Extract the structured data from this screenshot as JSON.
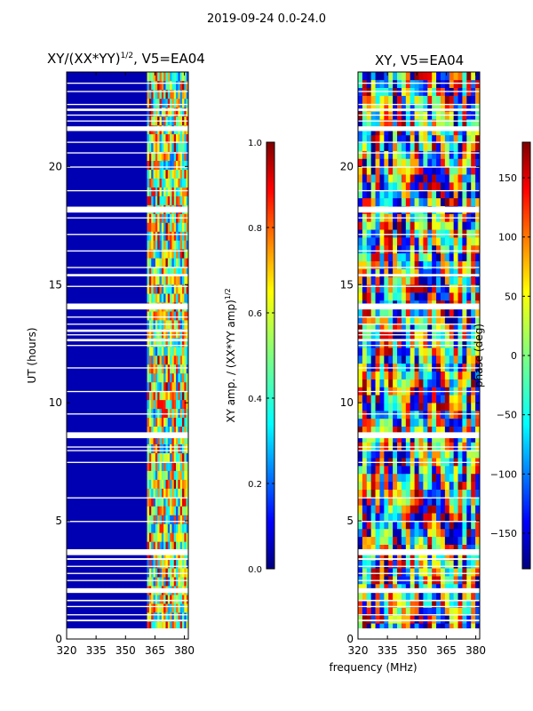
{
  "figure": {
    "suptitle": "2019-09-24 0.0-24.0"
  },
  "chart_data": [
    {
      "type": "heatmap",
      "panel": "amplitude",
      "title": "XY/(XX*YY)^{1/2}, V5=EA04",
      "title_main": "XY/(XX*YY)",
      "title_exp": "1/2",
      "title_tail": ", V5=EA04",
      "xlabel": "",
      "ylabel": "UT (hours)",
      "xlim": [
        320,
        382
      ],
      "ylim": [
        0,
        24
      ],
      "xticks": [
        320,
        335,
        350,
        365,
        380
      ],
      "yticks": [
        0,
        5,
        10,
        15,
        20
      ],
      "colormap": "jet",
      "colorbar": {
        "label_main": "XY amp. / (XX*YY amp)",
        "label_exp": "1/2",
        "range": [
          0.0,
          1.0
        ],
        "ticks": [
          "0.0",
          "0.2",
          "0.4",
          "0.6",
          "0.8",
          "1.0"
        ]
      },
      "features": {
        "low_band_mhz": [
          320,
          361
        ],
        "low_band_value": 0.05,
        "high_band_mhz": [
          361,
          382
        ],
        "high_band_value_range": [
          0.2,
          0.9
        ]
      }
    },
    {
      "type": "heatmap",
      "panel": "phase",
      "title": "XY, V5=EA04",
      "xlabel": "frequency (MHz)",
      "ylabel": "",
      "xlim": [
        320,
        382
      ],
      "ylim": [
        0,
        24
      ],
      "xticks": [
        320,
        335,
        350,
        365,
        380
      ],
      "yticks": [
        0,
        5,
        10,
        15,
        20
      ],
      "colormap": "jet",
      "colorbar": {
        "label": "phase (deg)",
        "range": [
          -180,
          180
        ],
        "ticks": [
          "150",
          "100",
          "50",
          "0",
          "−50",
          "−100",
          "−150"
        ],
        "tick_values": [
          150,
          100,
          50,
          0,
          -50,
          -100,
          -150
        ]
      }
    }
  ],
  "flag_gaps_hours": [
    [
      0.0,
      0.45
    ],
    [
      0.75,
      0.82
    ],
    [
      1.0,
      1.05
    ],
    [
      1.35,
      1.4
    ],
    [
      1.6,
      1.66
    ],
    [
      1.95,
      2.15
    ],
    [
      2.45,
      2.5
    ],
    [
      2.75,
      2.8
    ],
    [
      3.05,
      3.1
    ],
    [
      3.35,
      3.42
    ],
    [
      3.55,
      3.8
    ],
    [
      4.95,
      5.0
    ],
    [
      5.95,
      6.0
    ],
    [
      7.45,
      7.5
    ],
    [
      7.95,
      8.0
    ],
    [
      8.1,
      8.15
    ],
    [
      8.5,
      8.75
    ],
    [
      9.5,
      9.55
    ],
    [
      10.45,
      10.5
    ],
    [
      11.45,
      11.5
    ],
    [
      12.4,
      12.45
    ],
    [
      12.6,
      12.7
    ],
    [
      12.85,
      12.9
    ],
    [
      13.0,
      13.1
    ],
    [
      13.3,
      13.35
    ],
    [
      13.6,
      13.65
    ],
    [
      13.95,
      14.2
    ],
    [
      14.9,
      14.95
    ],
    [
      15.35,
      15.45
    ],
    [
      15.7,
      15.75
    ],
    [
      16.4,
      16.45
    ],
    [
      17.1,
      17.15
    ],
    [
      17.8,
      17.85
    ],
    [
      18.05,
      18.3
    ],
    [
      18.95,
      19.0
    ],
    [
      19.95,
      20.0
    ],
    [
      20.55,
      20.6
    ],
    [
      21.0,
      21.05
    ],
    [
      21.5,
      21.7
    ],
    [
      21.9,
      21.95
    ],
    [
      22.15,
      22.2
    ],
    [
      22.35,
      22.45
    ],
    [
      22.6,
      22.65
    ],
    [
      23.15,
      23.2
    ],
    [
      23.5,
      23.55
    ]
  ]
}
